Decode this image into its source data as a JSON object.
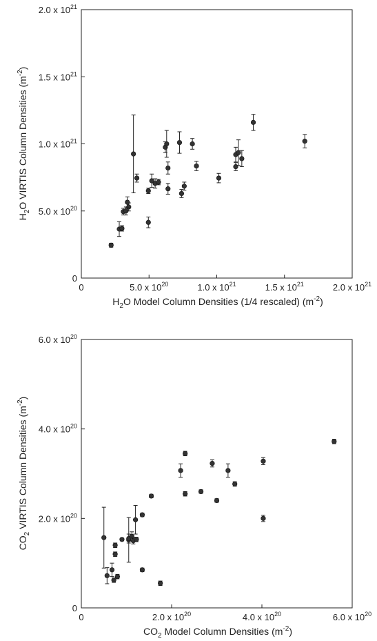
{
  "chart_data": [
    {
      "type": "scatter",
      "xlabel": "H2O Model Column Densities (1/4 rescaled) (m-2)",
      "ylabel": "H2O VIRTIS Column Densities (m-2)",
      "xlim": [
        0,
        2e+21
      ],
      "ylim": [
        0,
        2e+21
      ],
      "x_ticks": [
        {
          "value": 0,
          "label": "0"
        },
        {
          "value": 5e+20,
          "label": "5.0 x 10",
          "exp": "20"
        },
        {
          "value": 1e+21,
          "label": "1.0 x 10",
          "exp": "21"
        },
        {
          "value": 1.5e+21,
          "label": "1.5 x 10",
          "exp": "21"
        },
        {
          "value": 2e+21,
          "label": "2.0 x 10",
          "exp": "21"
        }
      ],
      "y_ticks": [
        {
          "value": 0,
          "label": "0"
        },
        {
          "value": 5e+20,
          "label": "5.0 x 10",
          "exp": "20"
        },
        {
          "value": 1e+21,
          "label": "1.0 x 10",
          "exp": "21"
        },
        {
          "value": 1.5e+21,
          "label": "1.5 x 10",
          "exp": "21"
        },
        {
          "value": 2e+21,
          "label": "2.0 x 10",
          "exp": "21"
        }
      ],
      "points": [
        {
          "x": 2.2e+20,
          "y": 2.45e+20,
          "err": 1.5e+19
        },
        {
          "x": 2.8e+20,
          "y": 3.65e+20,
          "err": 5.5e+19
        },
        {
          "x": 3e+20,
          "y": 3.7e+20,
          "err": 2e+19
        },
        {
          "x": 3.1e+20,
          "y": 4.95e+20,
          "err": 2.5e+19
        },
        {
          "x": 3.3e+20,
          "y": 5e+20,
          "err": 3e+19
        },
        {
          "x": 3.5e+20,
          "y": 5.3e+20,
          "err": 3e+19
        },
        {
          "x": 3.4e+20,
          "y": 5.65e+20,
          "err": 4e+19
        },
        {
          "x": 3.85e+20,
          "y": 9.25e+20,
          "err": 2.9e+20
        },
        {
          "x": 4.1e+20,
          "y": 7.45e+20,
          "err": 3e+19
        },
        {
          "x": 4.95e+20,
          "y": 4.15e+20,
          "err": 4e+19
        },
        {
          "x": 4.95e+20,
          "y": 6.5e+20,
          "err": 2e+19
        },
        {
          "x": 5.2e+20,
          "y": 7.25e+20,
          "err": 5e+19
        },
        {
          "x": 5.45e+20,
          "y": 7.05e+20,
          "err": 3.5e+19
        },
        {
          "x": 5.7e+20,
          "y": 7.15e+20,
          "err": 2e+19
        },
        {
          "x": 6.2e+20,
          "y": 9.75e+20,
          "err": 4e+19
        },
        {
          "x": 6.3e+20,
          "y": 1e+21,
          "err": 1e+20
        },
        {
          "x": 6.4e+20,
          "y": 8.2e+20,
          "err": 4.5e+19
        },
        {
          "x": 6.4e+20,
          "y": 6.65e+20,
          "err": 4e+19
        },
        {
          "x": 7.25e+20,
          "y": 1.01e+21,
          "err": 8e+19
        },
        {
          "x": 7.4e+20,
          "y": 6.3e+20,
          "err": 3e+19
        },
        {
          "x": 7.6e+20,
          "y": 6.85e+20,
          "err": 3e+19
        },
        {
          "x": 8.2e+20,
          "y": 1e+21,
          "err": 4e+19
        },
        {
          "x": 8.5e+20,
          "y": 8.35e+20,
          "err": 3.5e+19
        },
        {
          "x": 1.015e+21,
          "y": 7.45e+20,
          "err": 3.5e+19
        },
        {
          "x": 1.14e+21,
          "y": 9.2e+20,
          "err": 5.5e+19
        },
        {
          "x": 1.14e+21,
          "y": 8.3e+20,
          "err": 3e+19
        },
        {
          "x": 1.16e+21,
          "y": 9.35e+20,
          "err": 9.5e+19
        },
        {
          "x": 1.185e+21,
          "y": 8.9e+20,
          "err": 6e+19
        },
        {
          "x": 1.27e+21,
          "y": 1.16e+21,
          "err": 6e+19
        },
        {
          "x": 1.65e+21,
          "y": 1.02e+21,
          "err": 5e+19
        }
      ]
    },
    {
      "type": "scatter",
      "xlabel": "CO2 Model Column Densities (m-2)",
      "ylabel": "CO2 VIRTIS Column Densities (m-2)",
      "xlim": [
        0,
        6e+20
      ],
      "ylim": [
        0,
        6e+20
      ],
      "x_ticks": [
        {
          "value": 0,
          "label": "0"
        },
        {
          "value": 2e+20,
          "label": "2.0 x 10",
          "exp": "20"
        },
        {
          "value": 4e+20,
          "label": "4.0 x 10",
          "exp": "20"
        },
        {
          "value": 6e+20,
          "label": "6.0 x 10",
          "exp": "20"
        }
      ],
      "y_ticks": [
        {
          "value": 0,
          "label": "0"
        },
        {
          "value": 2e+20,
          "label": "2.0 x 10",
          "exp": "20"
        },
        {
          "value": 4e+20,
          "label": "4.0 x 10",
          "exp": "20"
        },
        {
          "value": 6e+20,
          "label": "6.0 x 10",
          "exp": "20"
        }
      ],
      "points": [
        {
          "x": 5e+19,
          "y": 1.57e+20,
          "err": 6.8e+19
        },
        {
          "x": 5.7e+19,
          "y": 7.2e+19,
          "err": 1.8e+19
        },
        {
          "x": 6.8e+19,
          "y": 8.5e+19,
          "err": 1.5e+19
        },
        {
          "x": 7.2e+19,
          "y": 6.2e+19,
          "err": 5e+18
        },
        {
          "x": 7.5e+19,
          "y": 1.4e+20,
          "err": 5e+18
        },
        {
          "x": 7.5e+19,
          "y": 1.2e+20,
          "err": 5e+18
        },
        {
          "x": 8e+19,
          "y": 7e+19,
          "err": 5e+18
        },
        {
          "x": 9e+19,
          "y": 1.53e+20,
          "err": 3e+18
        },
        {
          "x": 1.05e+20,
          "y": 1.52e+20,
          "err": 5e+19
        },
        {
          "x": 1.05e+20,
          "y": 1.55e+20,
          "err": 1e+19
        },
        {
          "x": 1.12e+20,
          "y": 1.6e+20,
          "err": 1e+19
        },
        {
          "x": 1.15e+20,
          "y": 1.5e+20,
          "err": 7e+18
        },
        {
          "x": 1.2e+20,
          "y": 1.97e+20,
          "err": 3.2e+19
        },
        {
          "x": 1.22e+20,
          "y": 1.53e+20,
          "err": 5e+18
        },
        {
          "x": 1.35e+20,
          "y": 2.08e+20,
          "err": 4e+18
        },
        {
          "x": 1.35e+20,
          "y": 8.5e+19,
          "err": 4e+18
        },
        {
          "x": 1.55e+20,
          "y": 2.5e+20,
          "err": 4e+18
        },
        {
          "x": 1.75e+20,
          "y": 5.5e+19,
          "err": 5e+18
        },
        {
          "x": 2.2e+20,
          "y": 3.07e+20,
          "err": 1.5e+19
        },
        {
          "x": 2.3e+20,
          "y": 3.45e+20,
          "err": 5e+18
        },
        {
          "x": 2.3e+20,
          "y": 2.55e+20,
          "err": 5e+18
        },
        {
          "x": 2.65e+20,
          "y": 2.6e+20,
          "err": 4e+18
        },
        {
          "x": 2.9e+20,
          "y": 3.23e+20,
          "err": 8e+18
        },
        {
          "x": 3e+20,
          "y": 2.4e+20,
          "err": 4e+18
        },
        {
          "x": 3.25e+20,
          "y": 3.07e+20,
          "err": 1.5e+19
        },
        {
          "x": 3.4e+20,
          "y": 2.77e+20,
          "err": 5e+18
        },
        {
          "x": 4.03e+20,
          "y": 3.28e+20,
          "err": 8e+18
        },
        {
          "x": 4.03e+20,
          "y": 2e+20,
          "err": 7e+18
        },
        {
          "x": 5.6e+20,
          "y": 3.72e+20,
          "err": 5e+18
        }
      ]
    }
  ],
  "colors": {
    "marker": "#333333",
    "axis": "#222222"
  }
}
